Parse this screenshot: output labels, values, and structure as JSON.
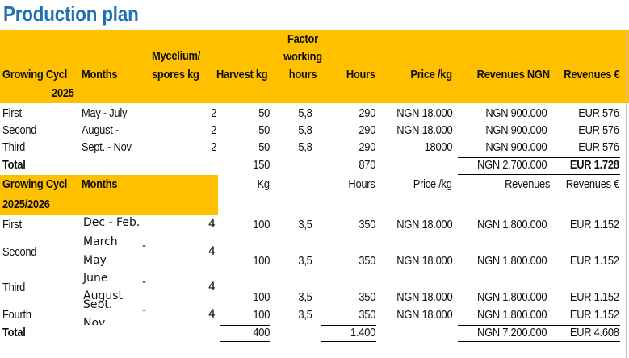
{
  "title": "Production plan",
  "header1": {
    "cycle": "Growing Cycl",
    "cycle_year": "2025",
    "months": "Months",
    "mycelium_l1": "Mycelium/",
    "mycelium_l2": "spores kg",
    "harvest": "Harvest kg",
    "factor_l1": "Factor",
    "factor_l2": "working",
    "factor_l3": "hours",
    "hours": "Hours",
    "price": "Price /kg",
    "rev_ngn": "Revenues NGN",
    "rev_eur": "Revenues €"
  },
  "section1": [
    {
      "cycle": "First",
      "months": "May - July",
      "mycelium": "2",
      "harvest": "50",
      "factor": "5,8",
      "hours": "290",
      "price": "NGN 18.000",
      "rev_ngn": "NGN 900.000",
      "rev_eur": "EUR 576"
    },
    {
      "cycle": "Second",
      "months": "August -",
      "mycelium": "2",
      "harvest": "50",
      "factor": "5,8",
      "hours": "290",
      "price": "NGN 18.000",
      "rev_ngn": "NGN 900.000",
      "rev_eur": "EUR 576"
    },
    {
      "cycle": "Third",
      "months": "Sept. - Nov.",
      "mycelium": "2",
      "harvest": "50",
      "factor": "5,8",
      "hours": "290",
      "price": "18000",
      "rev_ngn": "NGN 900.000",
      "rev_eur": "EUR 576"
    }
  ],
  "total1": {
    "label": "Total",
    "harvest": "150",
    "hours": "870",
    "rev_ngn": "NGN 2.700.000",
    "rev_eur": "EUR 1.728"
  },
  "header2": {
    "cycle": "Growing Cycl",
    "months": "Months",
    "cycle_year": "2025/2026",
    "kg": "Kg",
    "hours": "Hours",
    "price": "Price /kg",
    "revenues": "Revenues",
    "rev_eur": "Revenues €"
  },
  "section2": [
    {
      "cycle": "First",
      "months_l1": "Dec - Feb.",
      "months_l2": "",
      "dash": "",
      "mycelium": "4",
      "harvest": "100",
      "factor": "3,5",
      "hours": "350",
      "price": "NGN 18.000",
      "rev_ngn": "NGN 1.800.000",
      "rev_eur": "EUR 1.152"
    },
    {
      "cycle": "Second",
      "months_l1": "March",
      "months_l2": "May",
      "dash": "-",
      "mycelium": "4",
      "harvest": "100",
      "factor": "3,5",
      "hours": "350",
      "price": "NGN 18.000",
      "rev_ngn": "NGN 1.800.000",
      "rev_eur": "EUR 1.152"
    },
    {
      "cycle": "Third",
      "months_l1": "June",
      "months_l2": "August",
      "dash": "-",
      "mycelium": "4",
      "harvest": "100",
      "factor": "3,5",
      "hours": "350",
      "price": "NGN 18.000",
      "rev_ngn": "NGN 1.800.000",
      "rev_eur": "EUR 1.152"
    },
    {
      "cycle": "Fourth",
      "months_l1": "Sept.",
      "months_l2": "Nov.",
      "dash": "-",
      "mycelium": "4",
      "harvest": "100",
      "factor": "3,5",
      "hours": "350",
      "price": "NGN 18.000",
      "rev_ngn": "NGN 1.800.000",
      "rev_eur": "EUR 1.152"
    }
  ],
  "total2": {
    "label": "Total",
    "harvest": "400",
    "hours": "1.400",
    "rev_ngn": "NGN 7.200.000",
    "rev_eur": "EUR 4.608"
  }
}
